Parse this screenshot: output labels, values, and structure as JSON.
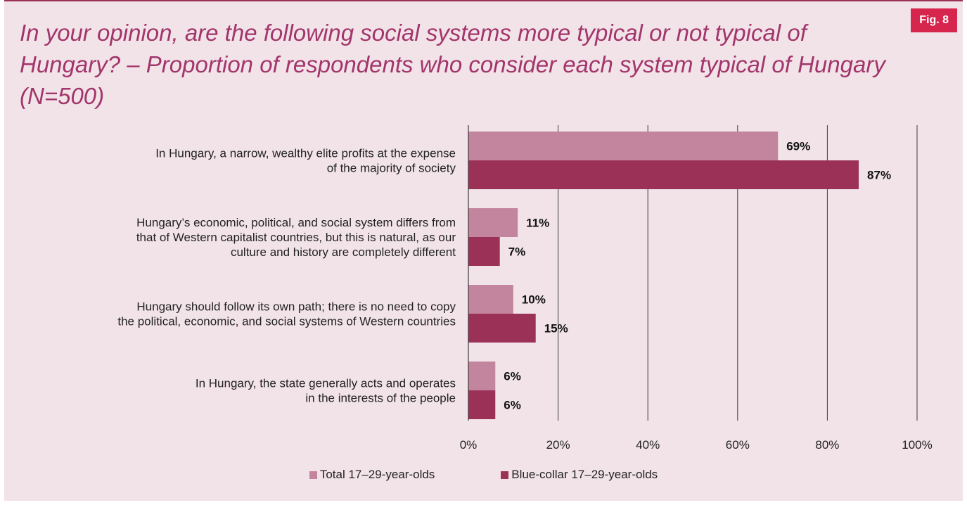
{
  "badge": "Fig. 8",
  "title": "In your opinion, are the following social systems more typical or not typical of Hungary? – Proportion of respondents who consider each system typical of Hungary (N=500)",
  "colors": {
    "total": "#c3849d",
    "blue_collar": "#9b3157"
  },
  "chart_data": {
    "type": "bar",
    "orientation": "horizontal",
    "categories": [
      [
        "In Hungary, a narrow, wealthy elite profits at the expense",
        "of the majority of society"
      ],
      [
        "Hungary’s economic, political, and social system differs from",
        "that of Western capitalist countries, but this is natural, as our",
        "culture and history are completely different"
      ],
      [
        "Hungary should follow its own path; there is no need to copy",
        "the political, economic, and social systems of Western countries"
      ],
      [
        "In Hungary, the state generally acts and operates",
        "in the interests of the people"
      ]
    ],
    "series": [
      {
        "name": "Total 17–29-year-olds",
        "values": [
          69,
          11,
          10,
          6
        ],
        "labels": [
          "69%",
          "11%",
          "10%",
          "6%"
        ]
      },
      {
        "name": "Blue-collar 17–29-year-olds",
        "values": [
          87,
          7,
          15,
          6
        ],
        "labels": [
          "87%",
          "7%",
          "15%",
          "6%"
        ]
      }
    ],
    "xlim": [
      0,
      100
    ],
    "ticks": [
      0,
      20,
      40,
      60,
      80,
      100
    ],
    "tick_labels": [
      "0%",
      "20%",
      "40%",
      "60%",
      "80%",
      "100%"
    ],
    "grid": true,
    "legend": "bottom"
  }
}
